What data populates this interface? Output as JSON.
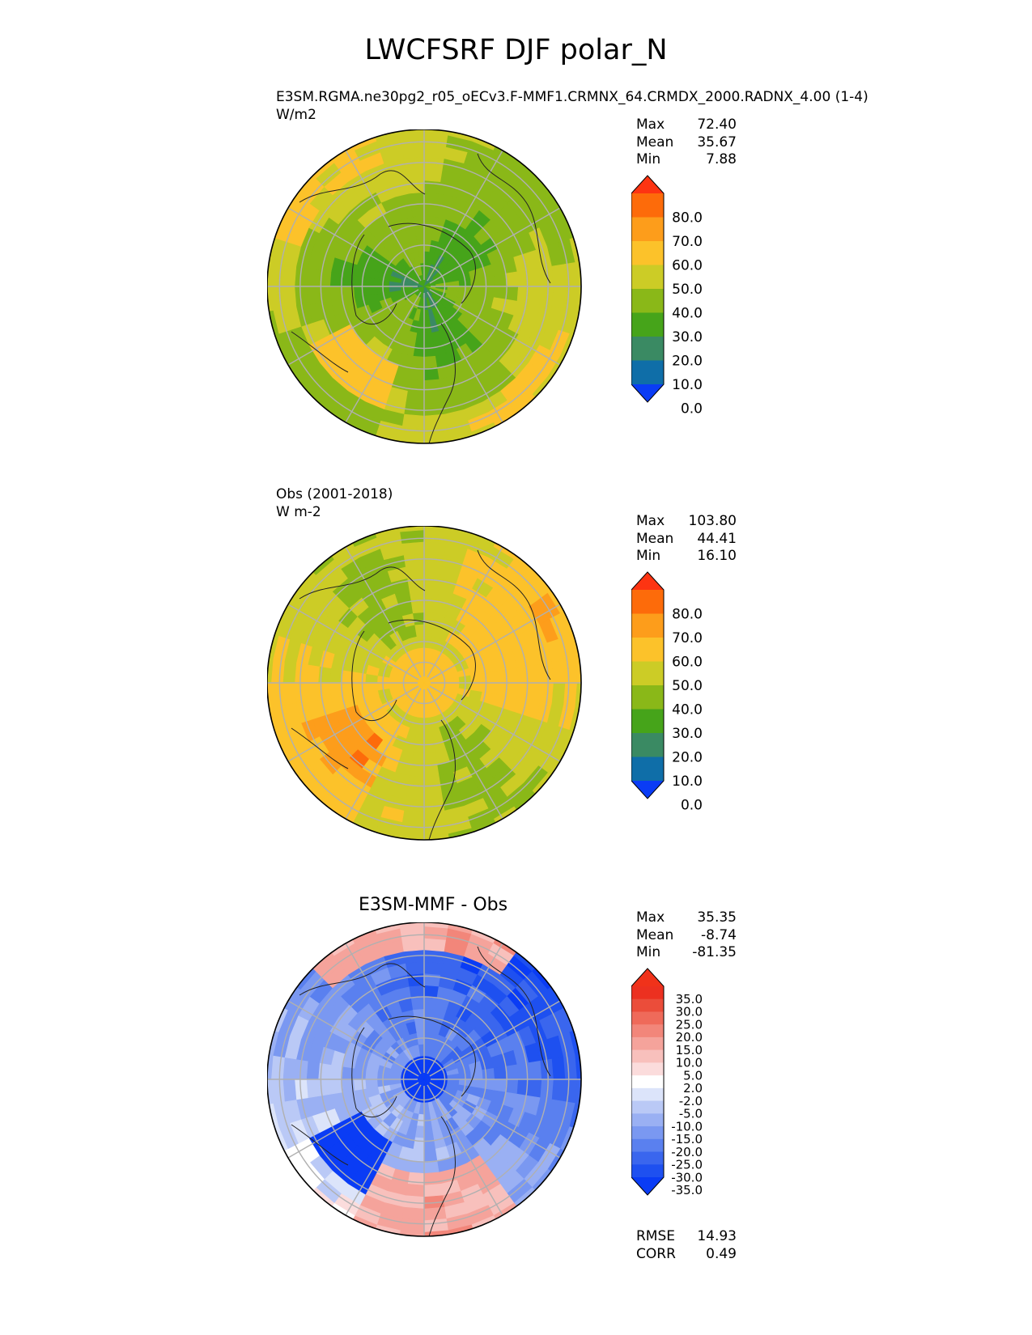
{
  "figure_title": "LWCFSRF DJF polar_N",
  "panels": [
    {
      "id": "test",
      "left_label": "E3SM.RGMA.ne30pg2_r05_oECv3.F-MMF1.CRMNX_64.CRMDX_2000.RADNX_4.00 (1-4)",
      "units": "W/m2",
      "center_title": "",
      "stats": [
        {
          "label": "Max",
          "value": "72.40"
        },
        {
          "label": "Mean",
          "value": "35.67"
        },
        {
          "label": "Min",
          "value": "7.88"
        }
      ]
    },
    {
      "id": "reference",
      "left_label": "Obs (2001-2018)",
      "units": "W m-2",
      "center_title": "",
      "stats": [
        {
          "label": "Max",
          "value": "103.80"
        },
        {
          "label": "Mean",
          "value": "44.41"
        },
        {
          "label": "Min",
          "value": "16.10"
        }
      ]
    },
    {
      "id": "difference",
      "left_label": "",
      "units": "",
      "center_title": "E3SM-MMF - Obs",
      "stats": [
        {
          "label": "Max",
          "value": "35.35"
        },
        {
          "label": "Mean",
          "value": "-8.74"
        },
        {
          "label": "Min",
          "value": "-81.35"
        }
      ],
      "metrics": [
        {
          "label": "RMSE",
          "value": "14.93"
        },
        {
          "label": "CORR",
          "value": "0.49"
        }
      ]
    }
  ],
  "chart_data": [
    {
      "type": "heatmap",
      "projection": "north polar stereographic",
      "title": "E3SM.RGMA.ne30pg2_r05_oECv3.F-MMF1.CRMNX_64.CRMDX_2000.RADNX_4.00 (1-4)",
      "units": "W/m2",
      "max": 72.4,
      "mean": 35.67,
      "min": 7.88,
      "colorbar_levels": [
        0,
        10,
        20,
        30,
        40,
        50,
        60,
        70,
        80
      ],
      "colorbar_tick_labels": [
        "80.0",
        "70.0",
        "60.0",
        "50.0",
        "40.0",
        "30.0",
        "20.0",
        "10.0",
        "0.0"
      ],
      "colorbar_colors": [
        "#0a3cf5",
        "#0f6ea8",
        "#3a8a63",
        "#46a41a",
        "#8ab818",
        "#cccc26",
        "#fcc22a",
        "#fd9d1b",
        "#fd6b0a",
        "#fd3412"
      ],
      "colorbar_extend": "both"
    },
    {
      "type": "heatmap",
      "projection": "north polar stereographic",
      "title": "Obs (2001-2018)",
      "units": "W m-2",
      "max": 103.8,
      "mean": 44.41,
      "min": 16.1,
      "colorbar_levels": [
        0,
        10,
        20,
        30,
        40,
        50,
        60,
        70,
        80
      ],
      "colorbar_tick_labels": [
        "80.0",
        "70.0",
        "60.0",
        "50.0",
        "40.0",
        "30.0",
        "20.0",
        "10.0",
        "0.0"
      ],
      "colorbar_colors": [
        "#0a3cf5",
        "#0f6ea8",
        "#3a8a63",
        "#46a41a",
        "#8ab818",
        "#cccc26",
        "#fcc22a",
        "#fd9d1b",
        "#fd6b0a",
        "#fd3412"
      ],
      "colorbar_extend": "both"
    },
    {
      "type": "heatmap",
      "projection": "north polar stereographic",
      "title": "E3SM-MMF - Obs",
      "max": 35.35,
      "mean": -8.74,
      "min": -81.35,
      "rmse": 14.93,
      "corr": 0.49,
      "colorbar_levels": [
        -35,
        -30,
        -25,
        -20,
        -15,
        -10,
        -5,
        -2,
        2,
        5,
        10,
        15,
        20,
        25,
        30,
        35
      ],
      "colorbar_tick_labels": [
        "35.0",
        "30.0",
        "25.0",
        "20.0",
        "15.0",
        "10.0",
        "5.0",
        "2.0",
        "-2.0",
        "-5.0",
        "-10.0",
        "-15.0",
        "-20.0",
        "-25.0",
        "-30.0",
        "-35.0"
      ],
      "colorbar_colors": [
        "#0a3cf5",
        "#1e50f0",
        "#3a66ee",
        "#5a80ef",
        "#7a98f1",
        "#9ab0f3",
        "#bac9f6",
        "#dce4fa",
        "#ffffff",
        "#fbdcdc",
        "#f8c0bc",
        "#f5a39b",
        "#f2867a",
        "#ef6a5a",
        "#eb4d3a",
        "#ec3020",
        "#f0321a"
      ],
      "colorbar_extend": "both"
    }
  ]
}
